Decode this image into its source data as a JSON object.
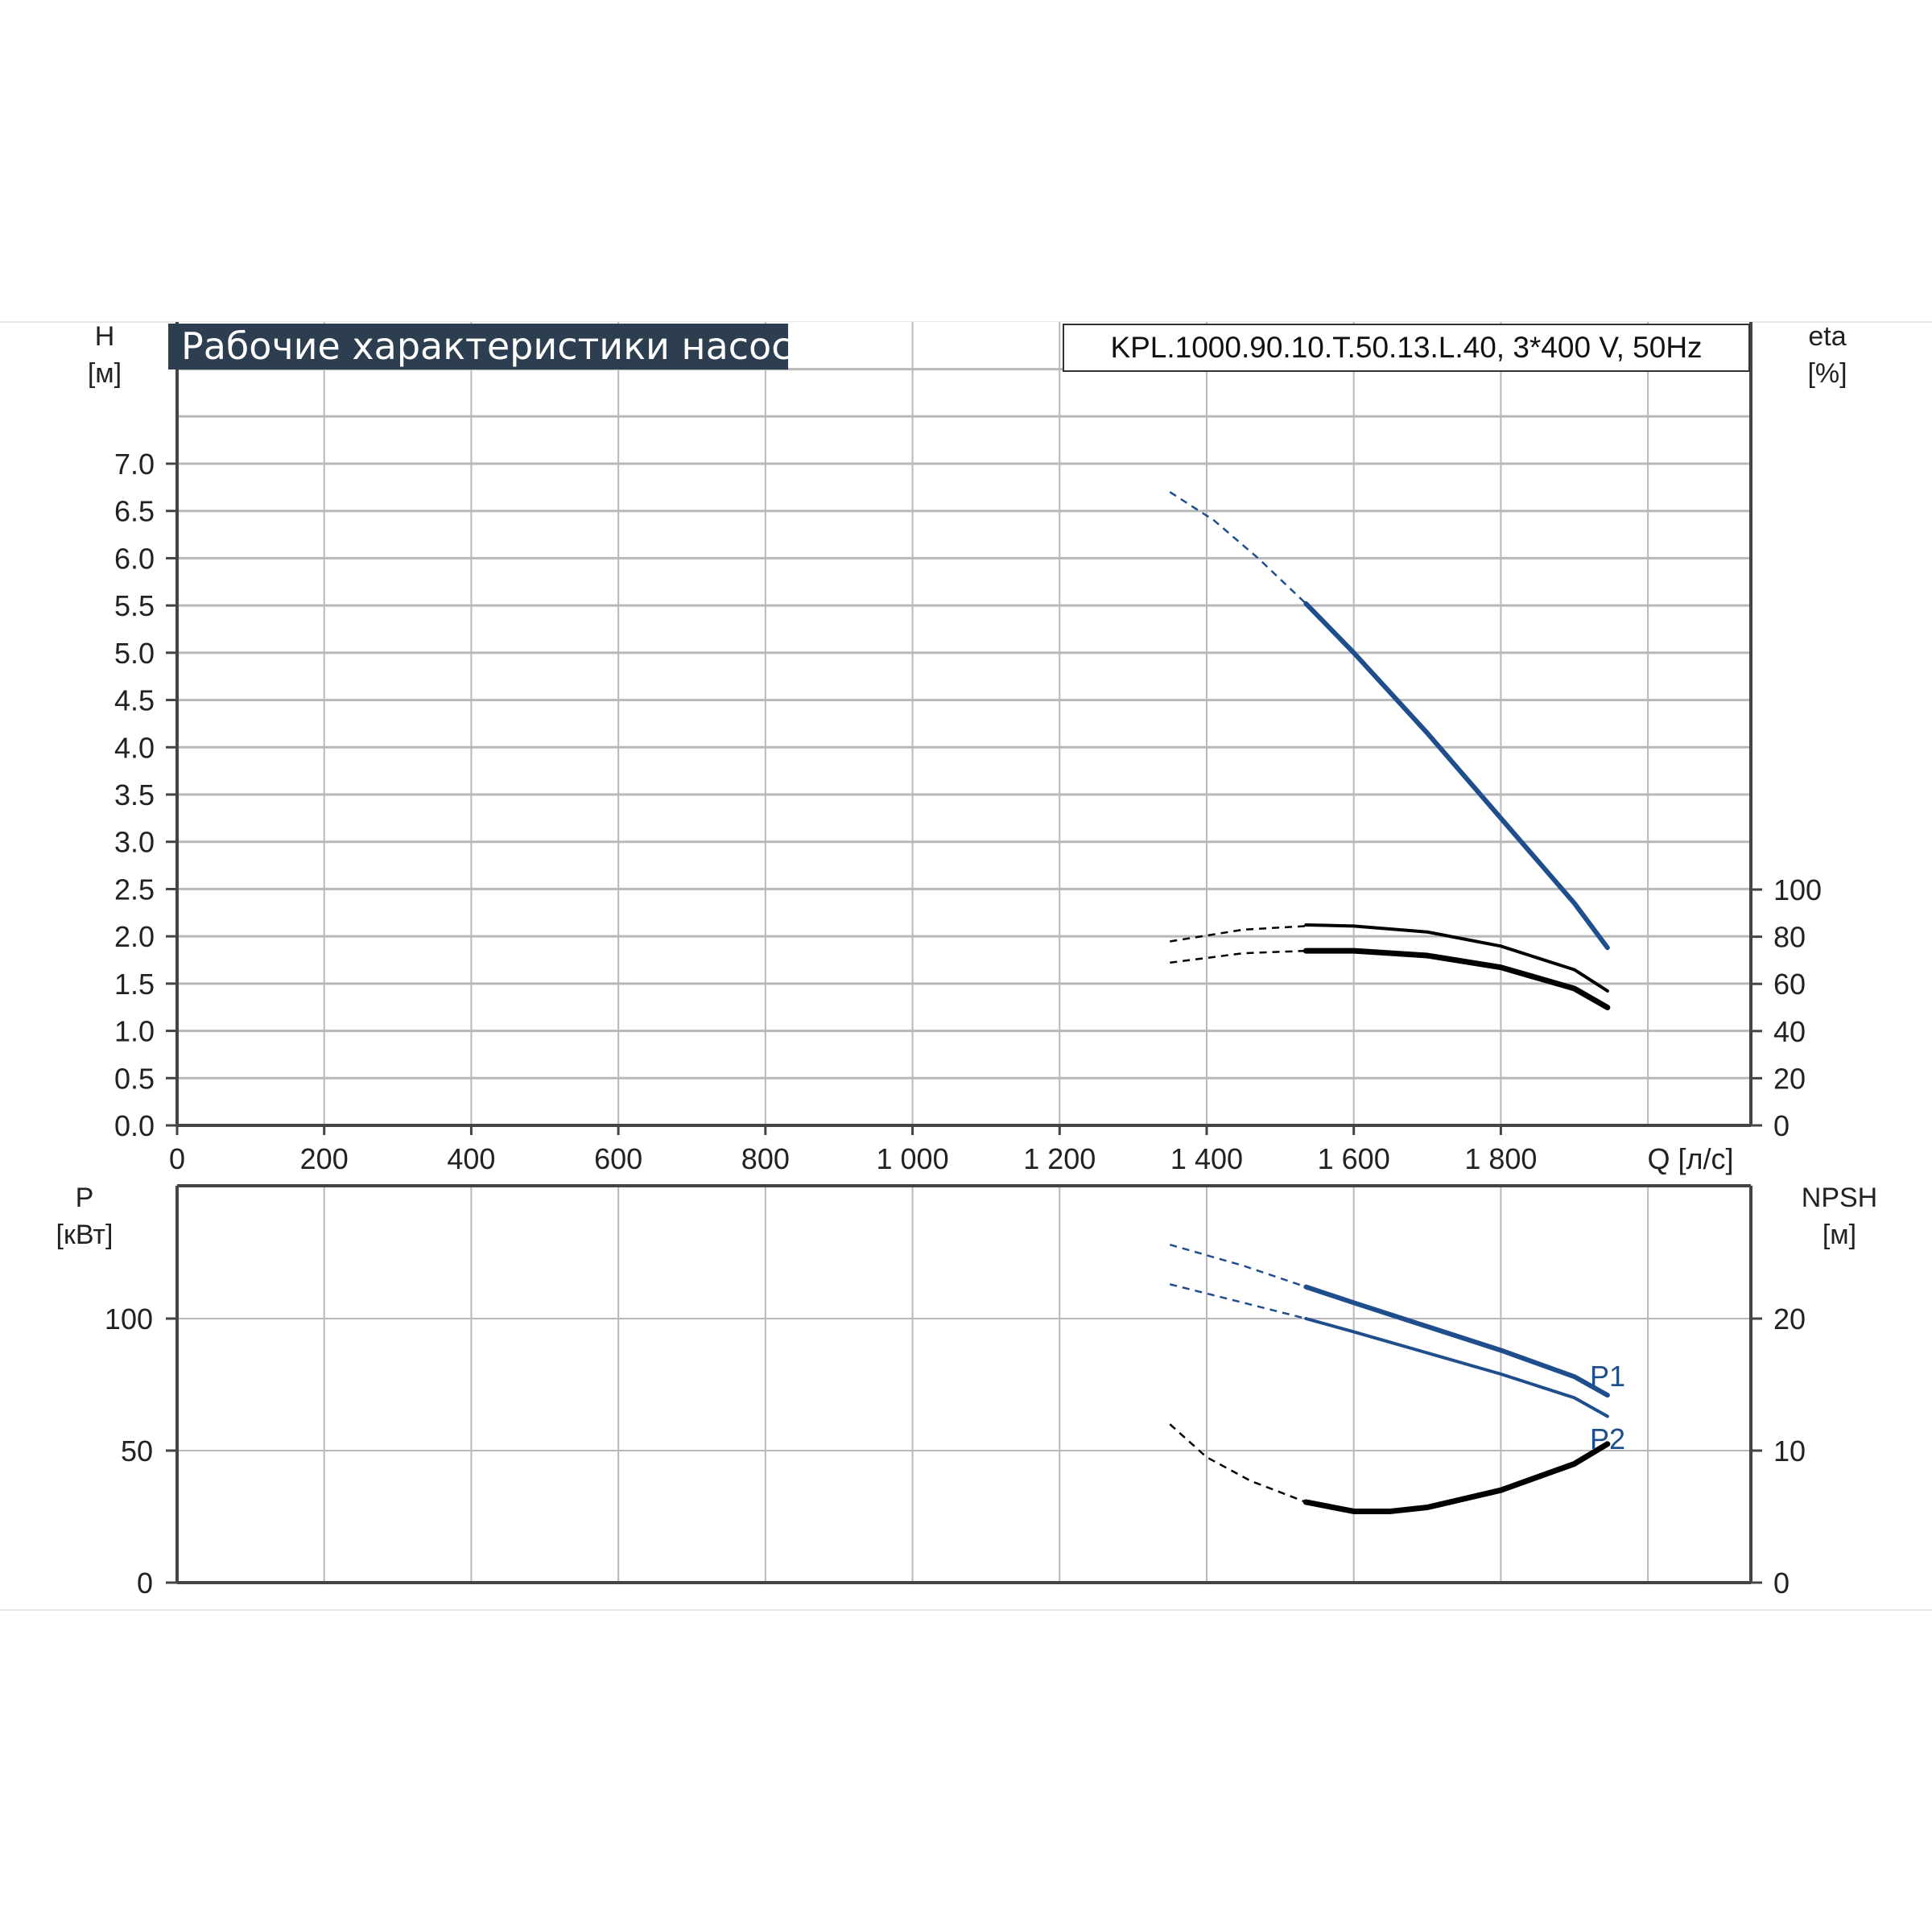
{
  "title": "Рабочие характеристики насоса",
  "model": "KPL.1000.90.10.T.50.13.L.40, 3*400 V, 50Hz",
  "axes": {
    "h_label": "H",
    "h_unit": "[м]",
    "eta_label": "eta",
    "eta_unit": "[%]",
    "p_label": "P",
    "p_unit": "[кВт]",
    "npsh_label": "NPSH",
    "npsh_unit": "[м]",
    "q_label": "Q [л/с]"
  },
  "colors": {
    "curve_blue": "#1f4e8c",
    "curve_black": "#000000",
    "title_bg": "#2c3e50",
    "grid": "#b8b8b8"
  },
  "chart_data": [
    {
      "type": "line",
      "panel": "top",
      "x_ticks": [
        "0",
        "200",
        "400",
        "600",
        "800",
        "1 000",
        "1 200",
        "1 400",
        "1 600",
        "1 800"
      ],
      "xlim": [
        0,
        2140
      ],
      "ylim_left": [
        0,
        7.0
      ],
      "y_left_ticks": [
        "0.0",
        "0.5",
        "1.0",
        "1.5",
        "2.0",
        "2.5",
        "3.0",
        "3.5",
        "4.0",
        "4.5",
        "5.0",
        "5.5",
        "6.0",
        "6.5",
        "7.0"
      ],
      "ylim_right": [
        0,
        100
      ],
      "y_right_ticks": [
        "0",
        "20",
        "40",
        "60",
        "80",
        "100"
      ],
      "grid": true,
      "series": [
        {
          "axis": "left",
          "color": "#1f4e8c",
          "dashed_x": [
            1350,
            1410,
            1470,
            1535
          ],
          "dashed_y": [
            6.7,
            6.4,
            6.0,
            5.52
          ],
          "x": [
            1535,
            1600,
            1700,
            1800,
            1900,
            1945
          ],
          "y": [
            5.52,
            5.0,
            4.15,
            3.25,
            2.35,
            1.88
          ]
        },
        {
          "axis": "right",
          "color": "#000000",
          "dashed_x": [
            1350,
            1450,
            1535
          ],
          "dashed_y": [
            78,
            83,
            84.5
          ],
          "x": [
            1535,
            1600,
            1700,
            1800,
            1900,
            1945
          ],
          "y": [
            85,
            84.5,
            82,
            76,
            66,
            57
          ]
        },
        {
          "axis": "right",
          "color": "#000000",
          "dashed_x": [
            1350,
            1450,
            1535
          ],
          "dashed_y": [
            69,
            73,
            74
          ],
          "x": [
            1535,
            1600,
            1700,
            1800,
            1900,
            1945
          ],
          "y": [
            74,
            74,
            72,
            67,
            58,
            50
          ]
        }
      ]
    },
    {
      "type": "line",
      "panel": "bottom",
      "xlim": [
        0,
        2140
      ],
      "ylim_left": [
        0,
        150
      ],
      "y_left_ticks": [
        "0",
        "50",
        "100"
      ],
      "ylim_right": [
        0,
        30
      ],
      "y_right_ticks": [
        "0",
        "10",
        "20"
      ],
      "grid": true,
      "series": [
        {
          "name": "P1",
          "axis": "left",
          "color": "#1f4e8c",
          "dashed_x": [
            1350,
            1450,
            1535
          ],
          "dashed_y": [
            128,
            120,
            112
          ],
          "x": [
            1535,
            1600,
            1700,
            1800,
            1900,
            1945
          ],
          "y": [
            112,
            106,
            97,
            88,
            78,
            71
          ]
        },
        {
          "name": "P2",
          "axis": "left",
          "color": "#1f4e8c",
          "dashed_x": [
            1350,
            1450,
            1535
          ],
          "dashed_y": [
            113,
            106,
            100
          ],
          "x": [
            1535,
            1600,
            1700,
            1800,
            1900,
            1945
          ],
          "y": [
            100,
            95,
            87,
            79,
            70,
            63
          ]
        },
        {
          "axis": "right",
          "color": "#000000",
          "dashed_x": [
            1350,
            1400,
            1460,
            1535
          ],
          "dashed_y": [
            12,
            9.5,
            7.7,
            6.1
          ],
          "x": [
            1535,
            1600,
            1650,
            1700,
            1800,
            1900,
            1945
          ],
          "y": [
            6.1,
            5.4,
            5.4,
            5.7,
            7.0,
            9.0,
            10.5
          ]
        }
      ]
    }
  ]
}
